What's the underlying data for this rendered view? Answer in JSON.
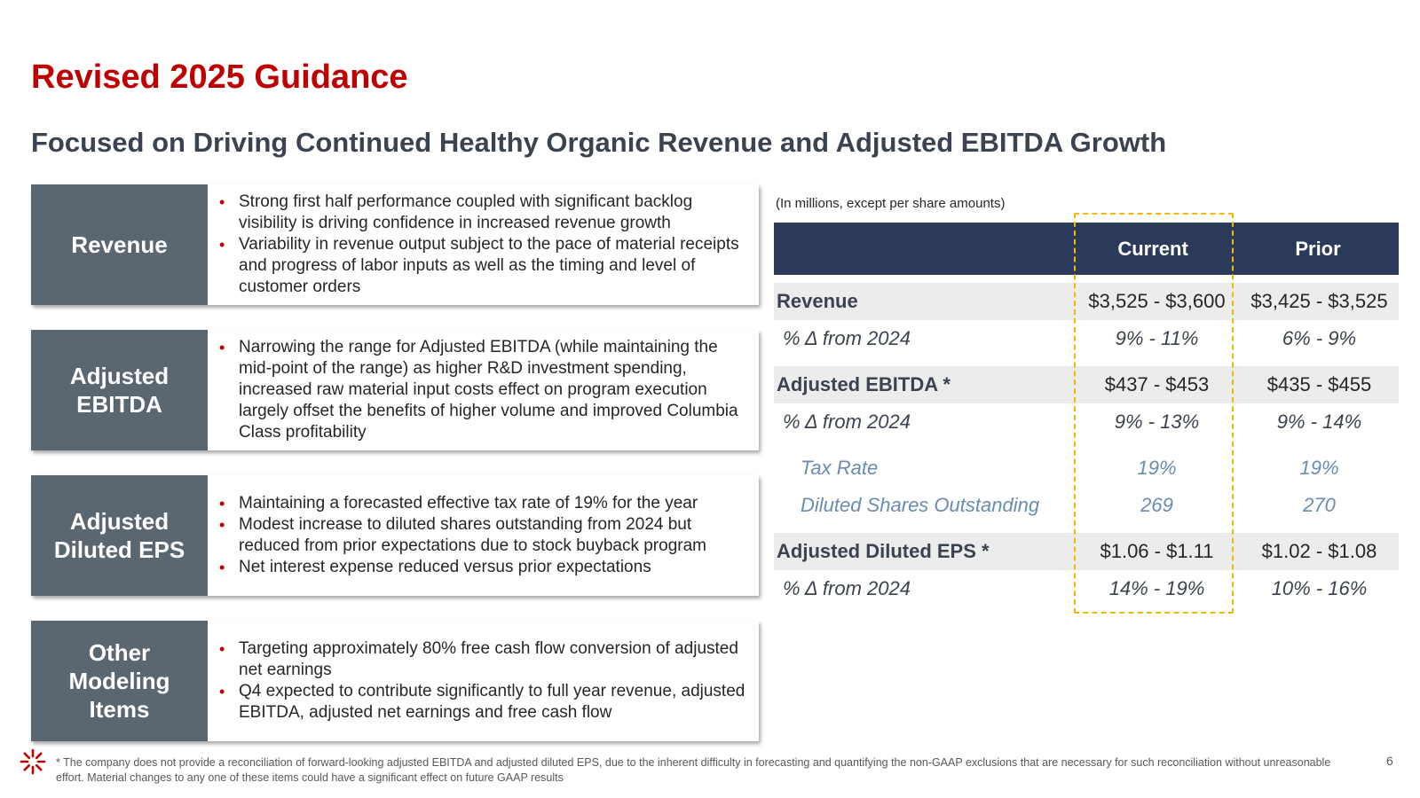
{
  "title": "Revised 2025 Guidance",
  "subtitle": "Focused on Driving Continued Healthy Organic Revenue and Adjusted EBITDA Growth",
  "boxes": [
    {
      "label": "Revenue",
      "bullets": [
        "Strong first half performance coupled with significant backlog visibility is driving confidence in increased revenue growth",
        "Variability in revenue output subject to the pace of material receipts and progress of labor inputs as well as the timing and level of customer orders"
      ]
    },
    {
      "label": "Adjusted EBITDA",
      "bullets": [
        "Narrowing the range for Adjusted EBITDA (while maintaining the mid-point of the range) as higher R&D investment spending, increased raw material input costs effect on program execution largely offset the benefits of higher volume and improved Columbia Class profitability"
      ]
    },
    {
      "label": "Adjusted Diluted EPS",
      "bullets": [
        "Maintaining a forecasted effective tax rate of 19% for the year",
        "Modest increase to diluted shares outstanding from 2024 but reduced from prior expectations due to stock buyback program",
        "Net interest expense reduced versus prior expectations"
      ]
    },
    {
      "label": "Other Modeling Items",
      "bullets": [
        "Targeting approximately 80% free cash flow conversion of adjusted net earnings",
        "Q4 expected to contribute significantly to full year revenue, adjusted EBITDA, adjusted net earnings and free cash flow"
      ]
    }
  ],
  "table": {
    "units_note": "(In millions, except per share amounts)",
    "headers": {
      "current": "Current",
      "prior": "Prior"
    },
    "rows": [
      {
        "label": "Revenue",
        "current": "$3,525 - $3,600",
        "prior": "$3,425 - $3,525"
      },
      {
        "label": "% Δ from 2024",
        "current": "9% - 11%",
        "prior": "6% - 9%"
      },
      {
        "label": "Adjusted EBITDA *",
        "current": "$437 - $453",
        "prior": "$435 - $455"
      },
      {
        "label": "% Δ from 2024",
        "current": "9% - 13%",
        "prior": "9% - 14%"
      },
      {
        "label": "Tax Rate",
        "current": "19%",
        "prior": "19%"
      },
      {
        "label": "Diluted Shares Outstanding",
        "current": "269",
        "prior": "270"
      },
      {
        "label": "Adjusted Diluted EPS *",
        "current": "$1.06 - $1.11",
        "prior": "$1.02 - $1.08"
      },
      {
        "label": "% Δ from 2024",
        "current": "14% - 19%",
        "prior": "10% - 16%"
      }
    ]
  },
  "footnote": "* The company does not provide a reconciliation of forward-looking adjusted EBITDA and adjusted diluted EPS, due to the inherent difficulty in forecasting and quantifying the non-GAAP exclusions that are necessary for such reconciliation without unreasonable effort. Material changes to any one of these items could have a significant effect on future GAAP results",
  "page_number": "6",
  "colors": {
    "title": "#c00000",
    "box_label_bg": "#5a6670",
    "table_header_bg": "#2b3a5a",
    "highlight_border": "#f5b800",
    "sub_row_text": "#6a8cb0"
  }
}
